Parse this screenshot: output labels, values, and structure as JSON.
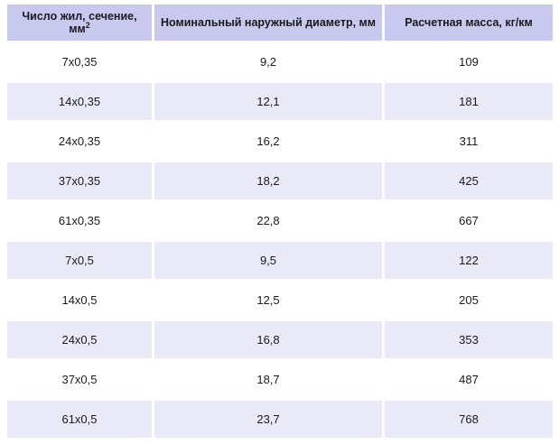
{
  "table": {
    "headers": [
      {
        "text": "Число жил, сечение, мм",
        "sup": "2"
      },
      {
        "text": "Номинальный наружный диаметр, мм"
      },
      {
        "text": "Расчетная масса, кг/км"
      }
    ],
    "rows": [
      [
        "7x0,35",
        "9,2",
        "109"
      ],
      [
        "14x0,35",
        "12,1",
        "181"
      ],
      [
        "24x0,35",
        "16,2",
        "311"
      ],
      [
        "37x0,35",
        "18,2",
        "425"
      ],
      [
        "61x0,35",
        "22,8",
        "667"
      ],
      [
        "7x0,5",
        "9,5",
        "122"
      ],
      [
        "14x0,5",
        "12,5",
        "205"
      ],
      [
        "24x0,5",
        "16,8",
        "353"
      ],
      [
        "37x0,5",
        "18,7",
        "487"
      ],
      [
        "61x0,5",
        "23,7",
        "768"
      ]
    ],
    "colors": {
      "header_bg": "#c9c9f0",
      "row_even_bg": "#e9e9f8",
      "row_odd_bg": "#ffffff",
      "text": "#1a1a1a"
    }
  }
}
